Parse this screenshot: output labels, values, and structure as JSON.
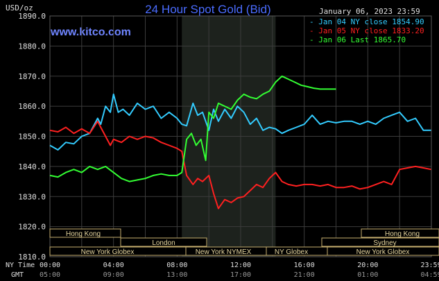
{
  "header": {
    "title": "24 Hour Spot Gold (Bid)",
    "unit": "USD/oz",
    "watermark": "www.kitco.com",
    "date_label": "January 06, 2023 23:59"
  },
  "legend": [
    {
      "text": "Jan 04 NY close 1854.90",
      "color": "#33ccff"
    },
    {
      "text": "Jan 05 NY close 1833.20",
      "color": "#ff2020"
    },
    {
      "text": "Jan 06 Last 1865.70",
      "color": "#33ff33"
    }
  ],
  "markets": {
    "row1": [
      "Hong Kong",
      "Hong Kong"
    ],
    "row2": [
      "London",
      "Sydney"
    ],
    "row3": [
      "New York Globex",
      "New York NYMEX",
      "NY Globex",
      "New York Globex"
    ]
  },
  "time_rows": {
    "ny_label": "NY Time",
    "gmt_label": "GMT",
    "ny": [
      "00:00",
      "04:00",
      "08:00",
      "12:00",
      "16:00",
      "20:00",
      "23:59"
    ],
    "gmt": [
      "05:00",
      "09:00",
      "13:00",
      "17:00",
      "21:00",
      "01:00",
      "04:59"
    ]
  },
  "chart_data": {
    "type": "line",
    "title": "24 Hour Spot Gold (Bid)",
    "ylabel": "USD/oz",
    "ylim": [
      1810,
      1890
    ],
    "xlim": [
      0,
      24
    ],
    "grid": true,
    "legend_position": "top-right",
    "y_ticks": [
      "1890.0",
      "1880.0",
      "1870.0",
      "1860.0",
      "1850.0",
      "1840.0",
      "1830.0",
      "1820.0",
      "1810.0"
    ],
    "highlight_range": [
      8.3,
      14.2
    ],
    "series": [
      {
        "name": "Jan 04 NY close 1854.90",
        "color": "#33ccff",
        "x": [
          0,
          0.5,
          1,
          1.5,
          2,
          2.5,
          3,
          3.2,
          3.5,
          3.8,
          4,
          4.3,
          4.6,
          5,
          5.5,
          6,
          6.5,
          7,
          7.5,
          8,
          8.3,
          8.6,
          9,
          9.3,
          9.6,
          10,
          10.3,
          10.6,
          11,
          11.4,
          11.8,
          12.2,
          12.6,
          13,
          13.4,
          13.8,
          14.2,
          14.6,
          15,
          15.5,
          16,
          16.5,
          17,
          17.5,
          18,
          18.5,
          19,
          19.5,
          20,
          20.5,
          21,
          21.5,
          22,
          22.5,
          23,
          23.5,
          23.98
        ],
        "y": [
          1847,
          1845.5,
          1848,
          1847.5,
          1850,
          1851,
          1856,
          1854,
          1860,
          1858,
          1864,
          1858,
          1859,
          1857,
          1861,
          1859,
          1860,
          1856,
          1858,
          1856,
          1854,
          1853.5,
          1861,
          1857,
          1858,
          1852,
          1859,
          1855,
          1859,
          1856,
          1860,
          1858,
          1854,
          1856,
          1852,
          1853,
          1852.5,
          1851,
          1852,
          1853,
          1854,
          1857,
          1854,
          1855,
          1854.5,
          1855,
          1855,
          1854,
          1855,
          1854,
          1856,
          1857,
          1858,
          1855,
          1856,
          1852,
          1852
        ]
      },
      {
        "name": "Jan 05 NY close 1833.20",
        "color": "#ff2020",
        "x": [
          0,
          0.5,
          1,
          1.5,
          2,
          2.5,
          3,
          3.2,
          3.5,
          3.8,
          4,
          4.5,
          5,
          5.5,
          6,
          6.5,
          7,
          7.5,
          8,
          8.3,
          8.6,
          9,
          9.3,
          9.6,
          10,
          10.3,
          10.6,
          11,
          11.4,
          11.8,
          12.2,
          12.6,
          13,
          13.4,
          13.8,
          14.2,
          14.6,
          15,
          15.5,
          16,
          16.5,
          17,
          17.5,
          18,
          18.5,
          19,
          19.5,
          20,
          20.5,
          21,
          21.5,
          22,
          22.5,
          23,
          23.5,
          23.98
        ],
        "y": [
          1852,
          1851.5,
          1853,
          1851,
          1852.5,
          1851,
          1855,
          1853,
          1850,
          1847,
          1849,
          1848,
          1850,
          1849,
          1850,
          1849.5,
          1848,
          1847,
          1846,
          1845,
          1837,
          1834,
          1836,
          1835,
          1837,
          1831,
          1826,
          1829,
          1828,
          1829.5,
          1830,
          1832,
          1834,
          1833,
          1836,
          1838,
          1835,
          1834,
          1833.5,
          1834,
          1834,
          1833.5,
          1834,
          1833,
          1833,
          1833.5,
          1832.5,
          1833,
          1834,
          1835,
          1834,
          1839,
          1839.5,
          1840,
          1839.5,
          1839
        ]
      },
      {
        "name": "Jan 06 Last 1865.70",
        "color": "#33ff33",
        "x": [
          0,
          0.5,
          1,
          1.5,
          2,
          2.5,
          3,
          3.5,
          4,
          4.5,
          5,
          5.5,
          6,
          6.5,
          7,
          7.5,
          8,
          8.3,
          8.6,
          8.9,
          9.2,
          9.5,
          9.8,
          10,
          10.3,
          10.6,
          11,
          11.4,
          11.8,
          12.2,
          12.6,
          13,
          13.4,
          13.8,
          14.2,
          14.6,
          15,
          15.4,
          15.8,
          16.2,
          16.6,
          17,
          17.5,
          18
        ],
        "y": [
          1837,
          1836.5,
          1838,
          1839,
          1838,
          1840,
          1839,
          1840,
          1838,
          1836,
          1835,
          1835.5,
          1836,
          1837,
          1837.5,
          1837,
          1837,
          1838,
          1849,
          1851,
          1847,
          1849,
          1842,
          1858,
          1856,
          1861,
          1860,
          1859,
          1862,
          1864,
          1863,
          1862.5,
          1864,
          1865,
          1868,
          1870,
          1869,
          1868,
          1867,
          1866.5,
          1866,
          1865.7,
          1865.7,
          1865.7
        ]
      }
    ]
  }
}
